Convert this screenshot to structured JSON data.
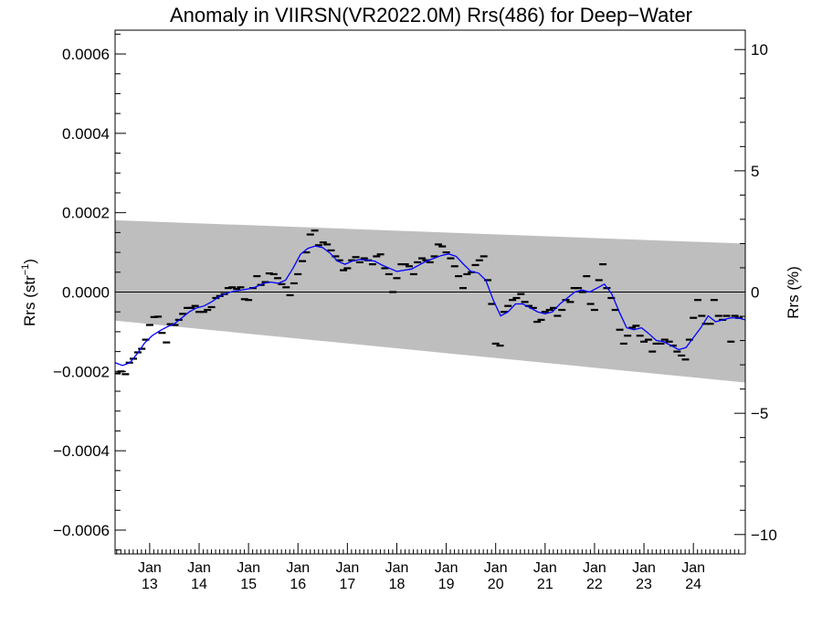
{
  "chart_data": {
    "type": "scatter",
    "title": "Anomaly in VIIRSN(VR2022.0M) Rrs(486) for Deep−Water",
    "ylabel_left": "Rrs (str",
    "ylabel_left_sup": "−1",
    "ylabel_left_close": ")",
    "ylabel_right": "Rrs (%)",
    "xlim": [
      2012.3,
      2025.05
    ],
    "ylim": [
      -0.00066,
      0.00066
    ],
    "y2lim": [
      -10.8,
      10.8
    ],
    "y_ticks": [
      {
        "value": 0.0006,
        "label": "0.0006"
      },
      {
        "value": 0.0004,
        "label": "0.0004"
      },
      {
        "value": 0.0002,
        "label": "0.0002"
      },
      {
        "value": 0.0,
        "label": "0.0000"
      },
      {
        "value": -0.0002,
        "label": "−0.0002"
      },
      {
        "value": -0.0004,
        "label": "−0.0004"
      },
      {
        "value": -0.0006,
        "label": "−0.0006"
      }
    ],
    "y2_ticks": [
      {
        "value": 10,
        "label": "10"
      },
      {
        "value": 5,
        "label": "5"
      },
      {
        "value": 0,
        "label": "0"
      },
      {
        "value": -5,
        "label": "−5"
      },
      {
        "value": -10,
        "label": "−10"
      }
    ],
    "x_ticks": [
      {
        "value": 2013.0,
        "month": "Jan",
        "year": "13"
      },
      {
        "value": 2014.0,
        "month": "Jan",
        "year": "14"
      },
      {
        "value": 2015.0,
        "month": "Jan",
        "year": "15"
      },
      {
        "value": 2016.0,
        "month": "Jan",
        "year": "16"
      },
      {
        "value": 2017.0,
        "month": "Jan",
        "year": "17"
      },
      {
        "value": 2018.0,
        "month": "Jan",
        "year": "18"
      },
      {
        "value": 2019.0,
        "month": "Jan",
        "year": "19"
      },
      {
        "value": 2020.0,
        "month": "Jan",
        "year": "20"
      },
      {
        "value": 2021.0,
        "month": "Jan",
        "year": "21"
      },
      {
        "value": 2022.0,
        "month": "Jan",
        "year": "22"
      },
      {
        "value": 2023.0,
        "month": "Jan",
        "year": "23"
      },
      {
        "value": 2024.0,
        "month": "Jan",
        "year": "24"
      }
    ],
    "band": {
      "x": [
        2012.3,
        2025.05
      ],
      "upper": [
        0.000181,
        0.000122
      ],
      "lower": [
        -7.2e-05,
        -0.000228
      ],
      "color": "#bebebe"
    },
    "zero_line": 0.0,
    "series": [
      {
        "kind": "monthly",
        "color": "#000000",
        "points": [
          [
            2012.34,
            -0.000205
          ],
          [
            2012.42,
            -0.0002
          ],
          [
            2012.51,
            -0.000207
          ],
          [
            2012.59,
            -0.000178
          ],
          [
            2012.67,
            -0.000168
          ],
          [
            2012.76,
            -0.000152
          ],
          [
            2012.84,
            -0.000143
          ],
          [
            2012.92,
            -0.00012
          ],
          [
            2013.0,
            -8.3e-05
          ],
          [
            2013.09,
            -6.3e-05
          ],
          [
            2013.17,
            -6.2e-05
          ],
          [
            2013.25,
            -0.000103
          ],
          [
            2013.34,
            -0.000127
          ],
          [
            2013.42,
            -8.1e-05
          ],
          [
            2013.51,
            -8.3e-05
          ],
          [
            2013.59,
            -7e-05
          ],
          [
            2013.67,
            -5.5e-05
          ],
          [
            2013.76,
            -4e-05
          ],
          [
            2013.84,
            -4e-05
          ],
          [
            2013.92,
            -3.5e-05
          ],
          [
            2014.0,
            -5e-05
          ],
          [
            2014.09,
            -5e-05
          ],
          [
            2014.17,
            -4.5e-05
          ],
          [
            2014.25,
            -3.8e-05
          ],
          [
            2014.34,
            -1.5e-05
          ],
          [
            2014.42,
            -1e-05
          ],
          [
            2014.51,
            -5e-06
          ],
          [
            2014.59,
            1e-05
          ],
          [
            2014.67,
            1.2e-05
          ],
          [
            2014.76,
            8e-06
          ],
          [
            2014.84,
            1.2e-05
          ],
          [
            2014.92,
            -1.8e-05
          ],
          [
            2015.0,
            -2e-05
          ],
          [
            2015.09,
            1e-05
          ],
          [
            2015.17,
            4e-05
          ],
          [
            2015.25,
            1.8e-05
          ],
          [
            2015.34,
            2.5e-05
          ],
          [
            2015.42,
            4.7e-05
          ],
          [
            2015.51,
            4.5e-05
          ],
          [
            2015.59,
            3.5e-05
          ],
          [
            2015.67,
            2e-05
          ],
          [
            2015.76,
            1.2e-05
          ],
          [
            2015.84,
            -8e-06
          ],
          [
            2015.92,
            2.2e-05
          ],
          [
            2016.0,
            4.5e-05
          ],
          [
            2016.09,
            7.8e-05
          ],
          [
            2016.17,
            0.0001
          ],
          [
            2016.25,
            0.000145
          ],
          [
            2016.34,
            0.000155
          ],
          [
            2016.42,
            0.000118
          ],
          [
            2016.51,
            0.000125
          ],
          [
            2016.59,
            0.00012
          ],
          [
            2016.67,
            0.000105
          ],
          [
            2016.76,
            9e-05
          ],
          [
            2016.84,
            8e-05
          ],
          [
            2016.92,
            5.5e-05
          ],
          [
            2017.0,
            6e-05
          ],
          [
            2017.09,
            8e-05
          ],
          [
            2017.17,
            8.8e-05
          ],
          [
            2017.25,
            7.5e-05
          ],
          [
            2017.34,
            8.5e-05
          ],
          [
            2017.42,
            8e-05
          ],
          [
            2017.51,
            7e-05
          ],
          [
            2017.59,
            9e-05
          ],
          [
            2017.67,
            9.5e-05
          ],
          [
            2017.76,
            6e-05
          ],
          [
            2017.84,
            4.5e-05
          ],
          [
            2017.92,
            0.0
          ],
          [
            2018.0,
            3.5e-05
          ],
          [
            2018.09,
            7e-05
          ],
          [
            2018.17,
            7e-05
          ],
          [
            2018.25,
            6.5e-05
          ],
          [
            2018.34,
            4.5e-05
          ],
          [
            2018.42,
            7.5e-05
          ],
          [
            2018.51,
            8.5e-05
          ],
          [
            2018.59,
            8e-05
          ],
          [
            2018.67,
            7.5e-05
          ],
          [
            2018.76,
            9e-05
          ],
          [
            2018.84,
            0.00012
          ],
          [
            2018.92,
            0.000115
          ],
          [
            2019.0,
            0.0001
          ],
          [
            2019.09,
            8.5e-05
          ],
          [
            2019.17,
            6.5e-05
          ],
          [
            2019.25,
            4e-05
          ],
          [
            2019.34,
            1e-05
          ],
          [
            2019.42,
            4.5e-05
          ],
          [
            2019.51,
            5e-05
          ],
          [
            2019.59,
            6.8e-05
          ],
          [
            2019.67,
            8e-05
          ],
          [
            2019.76,
            9e-05
          ],
          [
            2019.84,
            3e-05
          ],
          [
            2019.92,
            -3e-05
          ],
          [
            2020.0,
            -0.00013
          ],
          [
            2020.09,
            -0.000135
          ],
          [
            2020.17,
            -5e-05
          ],
          [
            2020.25,
            -3.5e-05
          ],
          [
            2020.34,
            -2e-05
          ],
          [
            2020.42,
            -1.5e-05
          ],
          [
            2020.51,
            -5e-06
          ],
          [
            2020.59,
            -2.5e-05
          ],
          [
            2020.67,
            -3.5e-05
          ],
          [
            2020.76,
            -4e-05
          ],
          [
            2020.84,
            -7.5e-05
          ],
          [
            2020.92,
            -7e-05
          ],
          [
            2021.0,
            -5e-05
          ],
          [
            2021.09,
            -4.5e-05
          ],
          [
            2021.17,
            -4e-05
          ],
          [
            2021.25,
            -6e-05
          ],
          [
            2021.34,
            -4.5e-05
          ],
          [
            2021.42,
            -2e-05
          ],
          [
            2021.51,
            -2.5e-05
          ],
          [
            2021.59,
            1e-05
          ],
          [
            2021.67,
            1e-05
          ],
          [
            2021.76,
            0.0
          ],
          [
            2021.84,
            4e-05
          ],
          [
            2021.92,
            -3e-05
          ],
          [
            2022.0,
            -4.5e-05
          ],
          [
            2022.09,
            3e-05
          ],
          [
            2022.17,
            7e-05
          ],
          [
            2022.25,
            1e-05
          ],
          [
            2022.34,
            -1.5e-05
          ],
          [
            2022.42,
            -4.5e-05
          ],
          [
            2022.51,
            -9.5e-05
          ],
          [
            2022.59,
            -0.00013
          ],
          [
            2022.67,
            -0.00011
          ],
          [
            2022.76,
            -9e-05
          ],
          [
            2022.84,
            -8.5e-05
          ],
          [
            2022.92,
            -0.00011
          ],
          [
            2023.0,
            -0.000125
          ],
          [
            2023.09,
            -0.00012
          ],
          [
            2023.17,
            -0.00015
          ],
          [
            2023.25,
            -0.00013
          ],
          [
            2023.34,
            -0.00013
          ],
          [
            2023.42,
            -0.00012
          ],
          [
            2023.51,
            -0.000125
          ],
          [
            2023.59,
            -0.000135
          ],
          [
            2023.67,
            -0.00015
          ],
          [
            2023.76,
            -0.00016
          ],
          [
            2023.84,
            -0.00017
          ],
          [
            2023.92,
            -0.00012
          ],
          [
            2024.0,
            -6.5e-05
          ],
          [
            2024.09,
            -2e-05
          ],
          [
            2024.17,
            -6e-05
          ],
          [
            2024.25,
            -8e-05
          ],
          [
            2024.34,
            -8e-05
          ],
          [
            2024.42,
            -2e-05
          ],
          [
            2024.51,
            -6e-05
          ],
          [
            2024.59,
            -7e-05
          ],
          [
            2024.67,
            -6e-05
          ],
          [
            2024.76,
            -0.000125
          ],
          [
            2024.84,
            -6e-05
          ],
          [
            2024.92,
            -6.5e-05
          ]
        ]
      },
      {
        "kind": "smoothed",
        "color": "#0000ff",
        "x": [
          2012.3,
          2012.45,
          2012.6,
          2012.75,
          2012.9,
          2013.05,
          2013.2,
          2013.35,
          2013.5,
          2013.65,
          2013.8,
          2013.95,
          2014.1,
          2014.25,
          2014.4,
          2014.55,
          2014.7,
          2014.85,
          2015.0,
          2015.15,
          2015.3,
          2015.45,
          2015.6,
          2015.75,
          2015.9,
          2016.05,
          2016.2,
          2016.35,
          2016.5,
          2016.65,
          2016.8,
          2016.95,
          2017.1,
          2017.25,
          2017.4,
          2017.55,
          2017.7,
          2017.85,
          2018.0,
          2018.15,
          2018.3,
          2018.45,
          2018.6,
          2018.75,
          2018.9,
          2019.05,
          2019.2,
          2019.35,
          2019.5,
          2019.65,
          2019.8,
          2019.95,
          2020.1,
          2020.25,
          2020.4,
          2020.55,
          2020.7,
          2020.85,
          2021.0,
          2021.15,
          2021.3,
          2021.45,
          2021.6,
          2021.75,
          2021.9,
          2022.05,
          2022.2,
          2022.35,
          2022.5,
          2022.65,
          2022.8,
          2022.95,
          2023.1,
          2023.25,
          2023.4,
          2023.55,
          2023.7,
          2023.85,
          2024.0,
          2024.15,
          2024.3,
          2024.45,
          2024.6,
          2024.75,
          2024.9,
          2025.05
        ],
        "y": [
          -0.000178,
          -0.000185,
          -0.000178,
          -0.000155,
          -0.000128,
          -0.00011,
          -9.8e-05,
          -8.8e-05,
          -8e-05,
          -6.5e-05,
          -5e-05,
          -4e-05,
          -3.5e-05,
          -2.5e-05,
          -1.2e-05,
          -3e-06,
          2e-06,
          5e-06,
          8e-06,
          1.3e-05,
          2.2e-05,
          2.5e-05,
          2.2e-05,
          3e-05,
          6e-05,
          9.5e-05,
          0.00011,
          0.000116,
          0.000112,
          9.8e-05,
          7.8e-05,
          7e-05,
          7.8e-05,
          8.2e-05,
          8e-05,
          7.8e-05,
          6.8e-05,
          6e-05,
          5.2e-05,
          5.5e-05,
          5.8e-05,
          6.8e-05,
          7.8e-05,
          8.5e-05,
          9.2e-05,
          9.6e-05,
          9e-05,
          7e-05,
          5.2e-05,
          4.8e-05,
          3e-05,
          -2e-05,
          -6e-05,
          -5e-05,
          -3e-05,
          -3e-05,
          -4e-05,
          -5e-05,
          -5.5e-05,
          -5e-05,
          -3e-05,
          -1.5e-05,
          0.0,
          5e-06,
          0.0,
          1e-05,
          2e-05,
          -5e-06,
          -5e-05,
          -9e-05,
          -9.5e-05,
          -9e-05,
          -0.000105,
          -0.000122,
          -0.000125,
          -0.000135,
          -0.000145,
          -0.00014,
          -0.000115,
          -9e-05,
          -6e-05,
          -7.5e-05,
          -7e-05,
          -6.5e-05,
          -6.5e-05,
          -7e-05
        ]
      }
    ],
    "grid": false,
    "legend": "none"
  }
}
